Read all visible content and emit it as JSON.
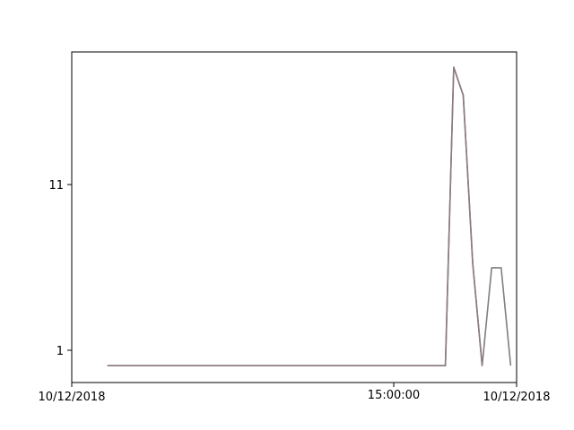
{
  "chart_data": {
    "type": "line",
    "title": "",
    "xlabel": "",
    "ylabel": "",
    "y_scale": "log",
    "x_tick_labels": [
      "10/12/2018",
      "15:00:00",
      "10/12/2018"
    ],
    "y_tick_labels": [
      "1",
      "11"
    ],
    "grid": false,
    "legend": "none",
    "colors": {
      "series_1": "#8c7a7f",
      "series_2": "#7f7f7f",
      "axes": "#000000"
    },
    "series": [
      {
        "x": [
          "2018-10-12 11:30",
          "2018-10-12 16:15",
          "2018-10-12 16:22",
          "2018-10-12 16:30",
          "2018-10-12 16:38",
          "2018-10-12 16:46"
        ],
        "values": [
          0.8,
          0.8,
          60,
          40,
          3.5,
          0.8
        ]
      },
      {
        "x": [
          "2018-10-12 11:30",
          "2018-10-12 16:15",
          "2018-10-12 16:22",
          "2018-10-12 16:30",
          "2018-10-12 16:38",
          "2018-10-12 16:46",
          "2018-10-12 16:54",
          "2018-10-12 17:02",
          "2018-10-12 17:10"
        ],
        "values": [
          0.8,
          0.8,
          60,
          40,
          3.5,
          0.8,
          3.3,
          3.3,
          0.8
        ]
      }
    ]
  }
}
